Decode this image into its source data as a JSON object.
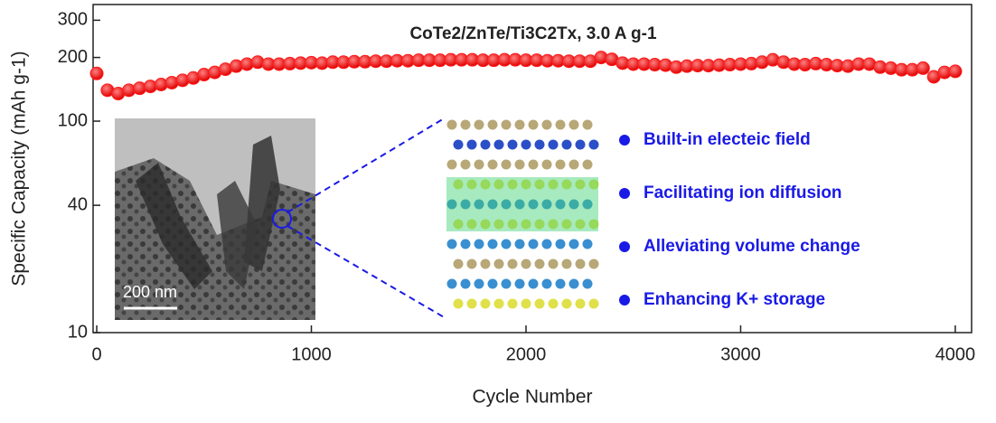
{
  "chart_data": {
    "type": "scatter",
    "title": "CoTe2/ZnTe/Ti3C2Tx, 3.0 A g-1",
    "x_label": "Cycle Number",
    "y_label": "Specific Capacity (mAh g-1)",
    "yscale": "log",
    "xlim": [
      -17,
      4076
    ],
    "ylim": [
      10,
      356
    ],
    "xticks": [
      0,
      1000,
      2000,
      3000,
      4000
    ],
    "yticks": [
      10,
      40,
      100,
      200,
      300
    ],
    "series": [
      {
        "color": "#ff1a1a",
        "x": [
          0,
          50,
          100,
          150,
          200,
          250,
          300,
          350,
          400,
          450,
          500,
          550,
          600,
          650,
          700,
          750,
          800,
          850,
          900,
          950,
          1000,
          1050,
          1100,
          1150,
          1200,
          1250,
          1300,
          1350,
          1400,
          1450,
          1500,
          1550,
          1600,
          1650,
          1700,
          1750,
          1800,
          1850,
          1900,
          1950,
          2000,
          2050,
          2100,
          2150,
          2200,
          2250,
          2300,
          2350,
          2400,
          2450,
          2500,
          2550,
          2600,
          2650,
          2700,
          2750,
          2800,
          2850,
          2900,
          2950,
          3000,
          3050,
          3100,
          3150,
          3200,
          3250,
          3300,
          3350,
          3400,
          3450,
          3500,
          3550,
          3600,
          3650,
          3700,
          3750,
          3800,
          3850,
          3900,
          3950,
          4000
        ],
        "values": [
          168,
          140,
          135,
          140,
          143,
          146,
          149,
          152,
          156,
          160,
          166,
          170,
          176,
          182,
          186,
          190,
          186,
          186,
          187,
          188,
          189,
          188,
          190,
          190,
          191,
          191,
          192,
          192,
          193,
          193,
          194,
          194,
          194,
          195,
          195,
          195,
          194,
          194,
          195,
          195,
          194,
          194,
          193,
          193,
          192,
          192,
          192,
          200,
          196,
          188,
          186,
          186,
          185,
          184,
          180,
          182,
          183,
          183,
          184,
          185,
          186,
          187,
          190,
          195,
          190,
          186,
          185,
          187,
          185,
          183,
          182,
          186,
          186,
          180,
          178,
          175,
          175,
          178,
          162,
          170,
          172
        ]
      }
    ],
    "inset_scale_bar": "200 nm",
    "bullets": [
      "Built-in electeic field",
      "Facilitating ion diffusion",
      "Alleviating volume change",
      "Enhancing K+ storage"
    ]
  }
}
